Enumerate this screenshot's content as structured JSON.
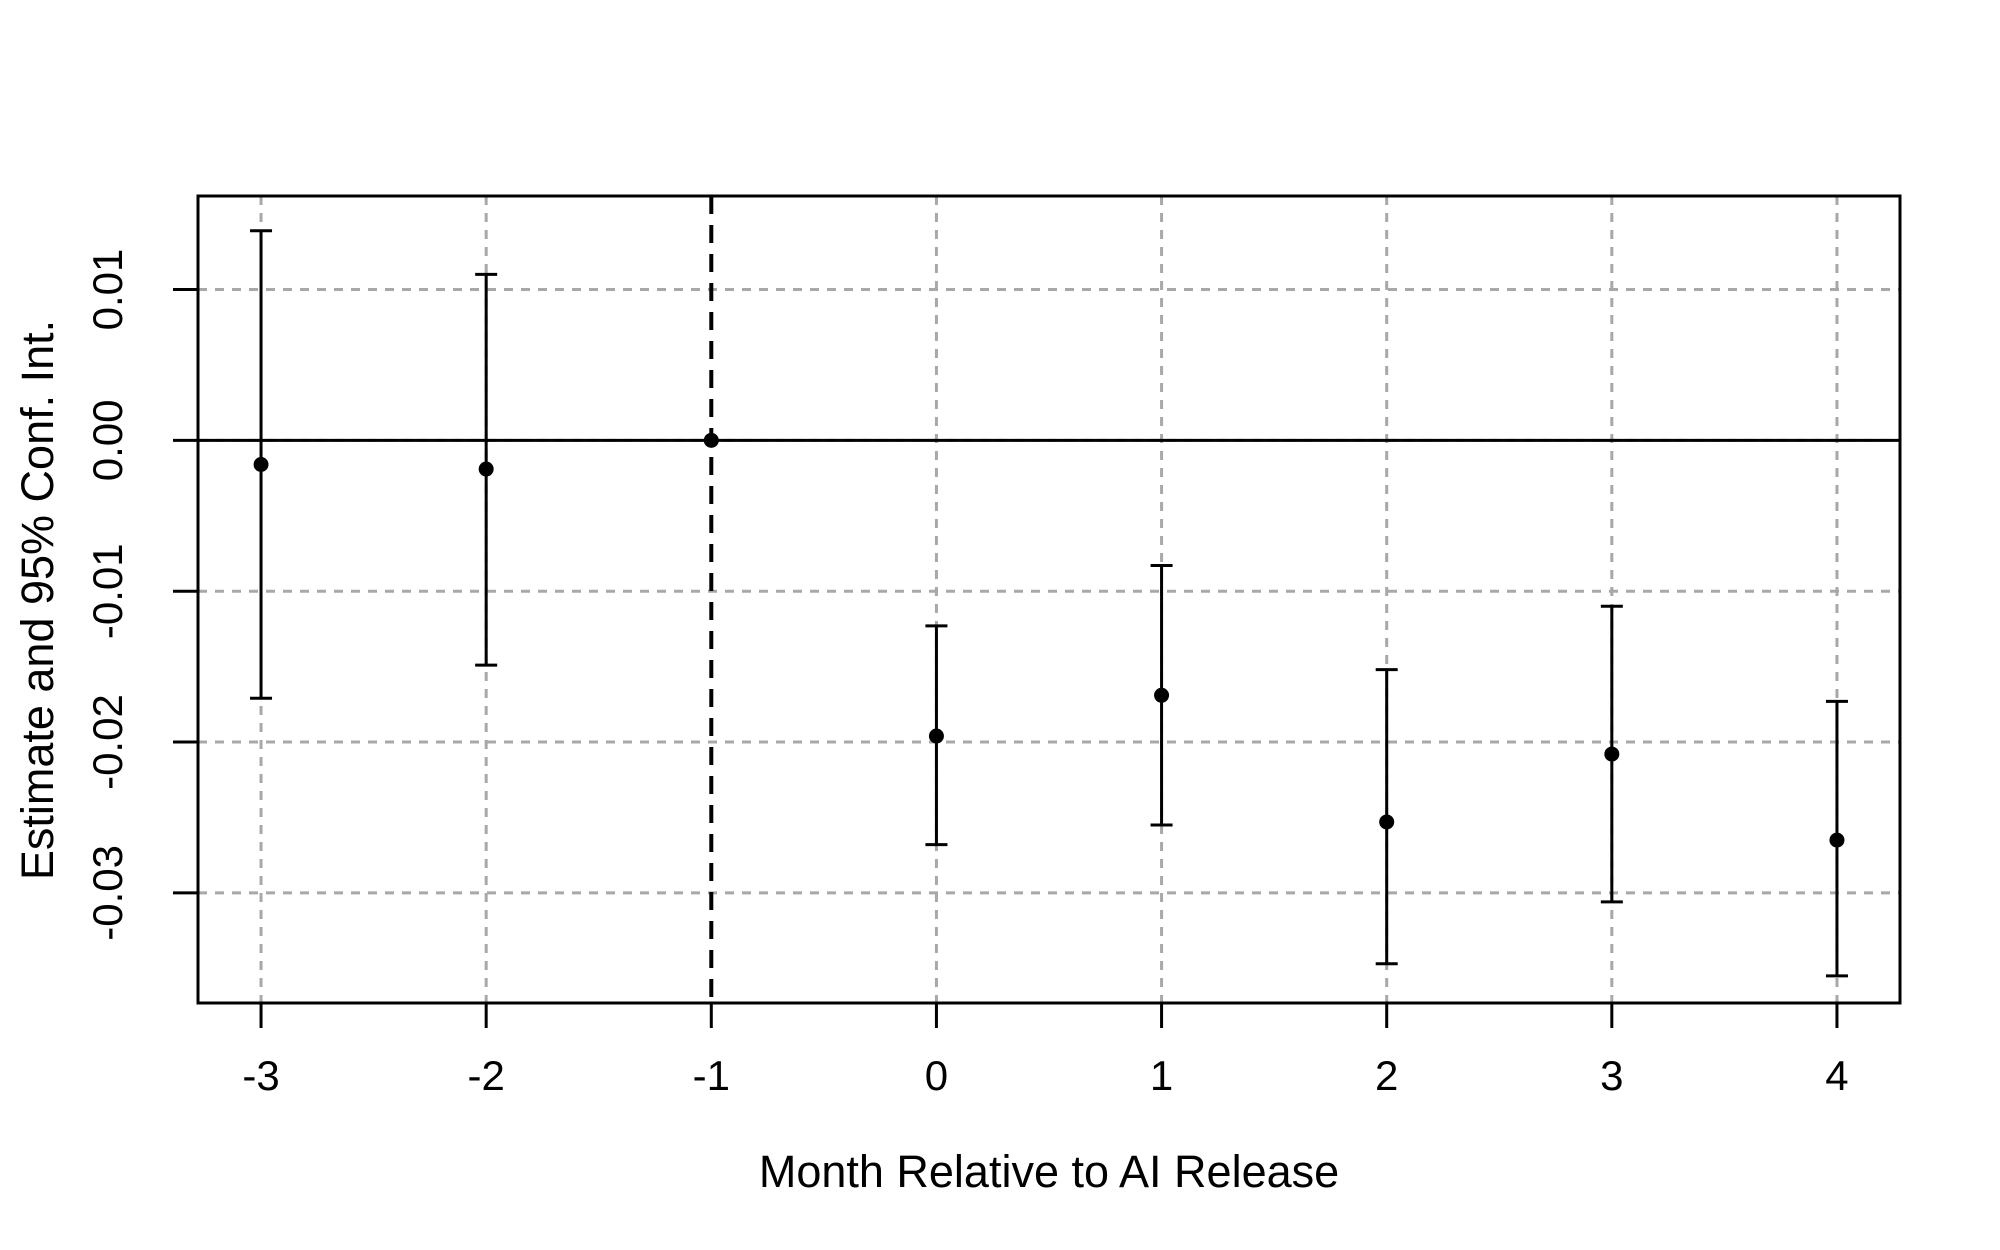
{
  "page": {
    "background": "#ffffff"
  },
  "chart_data": {
    "type": "scatter",
    "subtype": "event-study point estimates with 95% confidence intervals",
    "title": "",
    "xlabel": "Month Relative to AI Release",
    "ylabel": "Estimate and 95% Conf. Int.",
    "x": [
      -3,
      -2,
      -1,
      0,
      1,
      2,
      3,
      4
    ],
    "series": [
      {
        "name": "estimate",
        "values": [
          -0.0016,
          -0.0019,
          0.0,
          -0.0196,
          -0.0169,
          -0.0253,
          -0.0208,
          -0.0265
        ]
      }
    ],
    "ci_low": [
      -0.0171,
      -0.0149,
      null,
      -0.0268,
      -0.0255,
      -0.0347,
      -0.0306,
      -0.0355
    ],
    "ci_high": [
      0.0139,
      0.011,
      null,
      -0.0123,
      -0.0083,
      -0.0152,
      -0.011,
      -0.0173
    ],
    "reference_period_x": -1,
    "zero_line_y": 0,
    "event_line_x": -1,
    "x_tick_labels": [
      "-3",
      "-2",
      "-1",
      "0",
      "1",
      "2",
      "3",
      "4"
    ],
    "x_tick_values": [
      -3,
      -2,
      -1,
      0,
      1,
      2,
      3,
      4
    ],
    "y_tick_labels": [
      "0.01",
      "0.00",
      "-0.01",
      "-0.02",
      "-0.03"
    ],
    "y_tick_values": [
      0.01,
      0.0,
      -0.01,
      -0.02,
      -0.03
    ],
    "xlim": [
      -3.28,
      4.28
    ],
    "ylim": [
      -0.0373,
      0.0162
    ],
    "grid": "dashed gray horizontal and vertical lines at every tick",
    "legend": "none",
    "colors": {
      "foreground": "#000000",
      "gridline": "#a8a8a8",
      "background": "#ffffff"
    }
  }
}
